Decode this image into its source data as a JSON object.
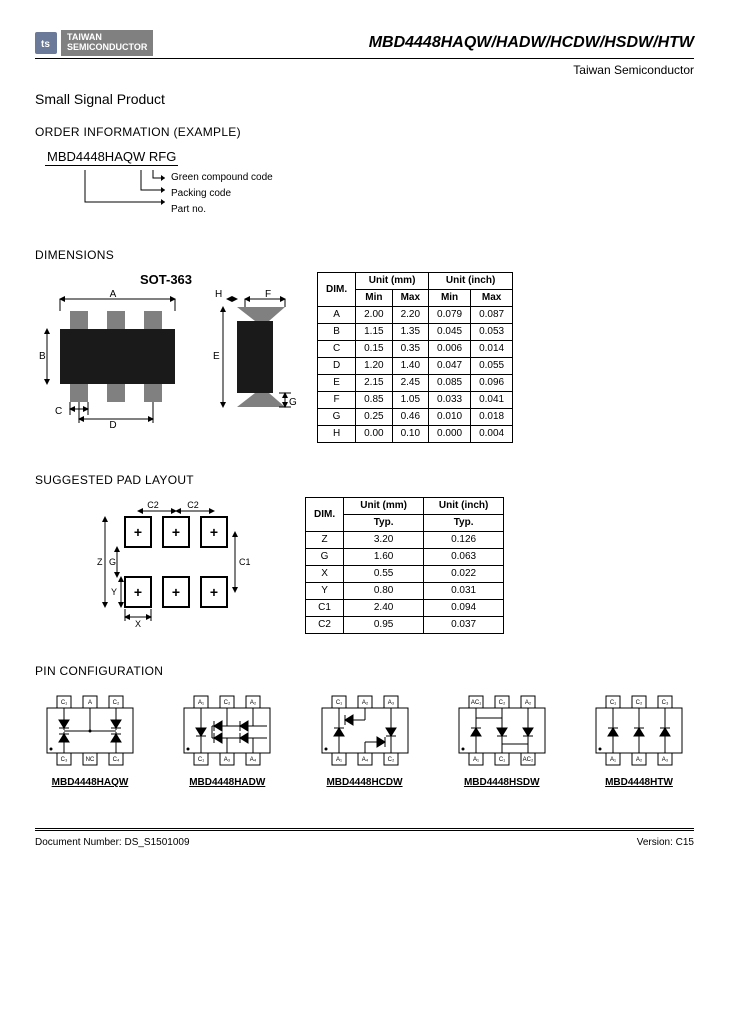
{
  "header": {
    "logo_symbol": "ts",
    "logo_line1": "TAIWAN",
    "logo_line2": "SEMICONDUCTOR",
    "title": "MBD4448HAQW/HADW/HCDW/HSDW/HTW",
    "company": "Taiwan Semiconductor"
  },
  "product_line": "Small Signal Product",
  "order": {
    "heading": "ORDER INFORMATION (EXAMPLE)",
    "part": "MBD4448HAQW RFG",
    "labels": [
      "Green compound code",
      "Packing code",
      "Part no."
    ]
  },
  "dimensions": {
    "heading": "DIMENSIONS",
    "pkg_name": "SOT-363",
    "table": {
      "dim_hdr": "DIM.",
      "unit_mm": "Unit (mm)",
      "unit_in": "Unit (inch)",
      "min": "Min",
      "max": "Max",
      "rows": [
        {
          "d": "A",
          "mmMin": "2.00",
          "mmMax": "2.20",
          "inMin": "0.079",
          "inMax": "0.087"
        },
        {
          "d": "B",
          "mmMin": "1.15",
          "mmMax": "1.35",
          "inMin": "0.045",
          "inMax": "0.053"
        },
        {
          "d": "C",
          "mmMin": "0.15",
          "mmMax": "0.35",
          "inMin": "0.006",
          "inMax": "0.014"
        },
        {
          "d": "D",
          "mmMin": "1.20",
          "mmMax": "1.40",
          "inMin": "0.047",
          "inMax": "0.055"
        },
        {
          "d": "E",
          "mmMin": "2.15",
          "mmMax": "2.45",
          "inMin": "0.085",
          "inMax": "0.096"
        },
        {
          "d": "F",
          "mmMin": "0.85",
          "mmMax": "1.05",
          "inMin": "0.033",
          "inMax": "0.041"
        },
        {
          "d": "G",
          "mmMin": "0.25",
          "mmMax": "0.46",
          "inMin": "0.010",
          "inMax": "0.018"
        },
        {
          "d": "H",
          "mmMin": "0.00",
          "mmMax": "0.10",
          "inMin": "0.000",
          "inMax": "0.004"
        }
      ]
    }
  },
  "padlayout": {
    "heading": "SUGGESTED PAD LAYOUT",
    "table": {
      "dim_hdr": "DIM.",
      "unit_mm": "Unit (mm)",
      "unit_in": "Unit (inch)",
      "typ": "Typ.",
      "rows": [
        {
          "d": "Z",
          "mm": "3.20",
          "in": "0.126"
        },
        {
          "d": "G",
          "mm": "1.60",
          "in": "0.063"
        },
        {
          "d": "X",
          "mm": "0.55",
          "in": "0.022"
        },
        {
          "d": "Y",
          "mm": "0.80",
          "in": "0.031"
        },
        {
          "d": "C1",
          "mm": "2.40",
          "in": "0.094"
        },
        {
          "d": "C2",
          "mm": "0.95",
          "in": "0.037"
        }
      ]
    }
  },
  "pinconfig": {
    "heading": "PIN CONFIGURATION",
    "items": [
      "MBD4448HAQW",
      "MBD4448HADW",
      "MBD4448HCDW",
      "MBD4448HSDW",
      "MBD4448HTW"
    ]
  },
  "footer": {
    "docnum": "Document Number: DS_S1501009",
    "version": "Version: C15"
  },
  "colors": {
    "leads": "#808080",
    "body": "#1a1a1a",
    "line": "#000000",
    "arrow": "#000000",
    "pad_outline": "#000000"
  }
}
